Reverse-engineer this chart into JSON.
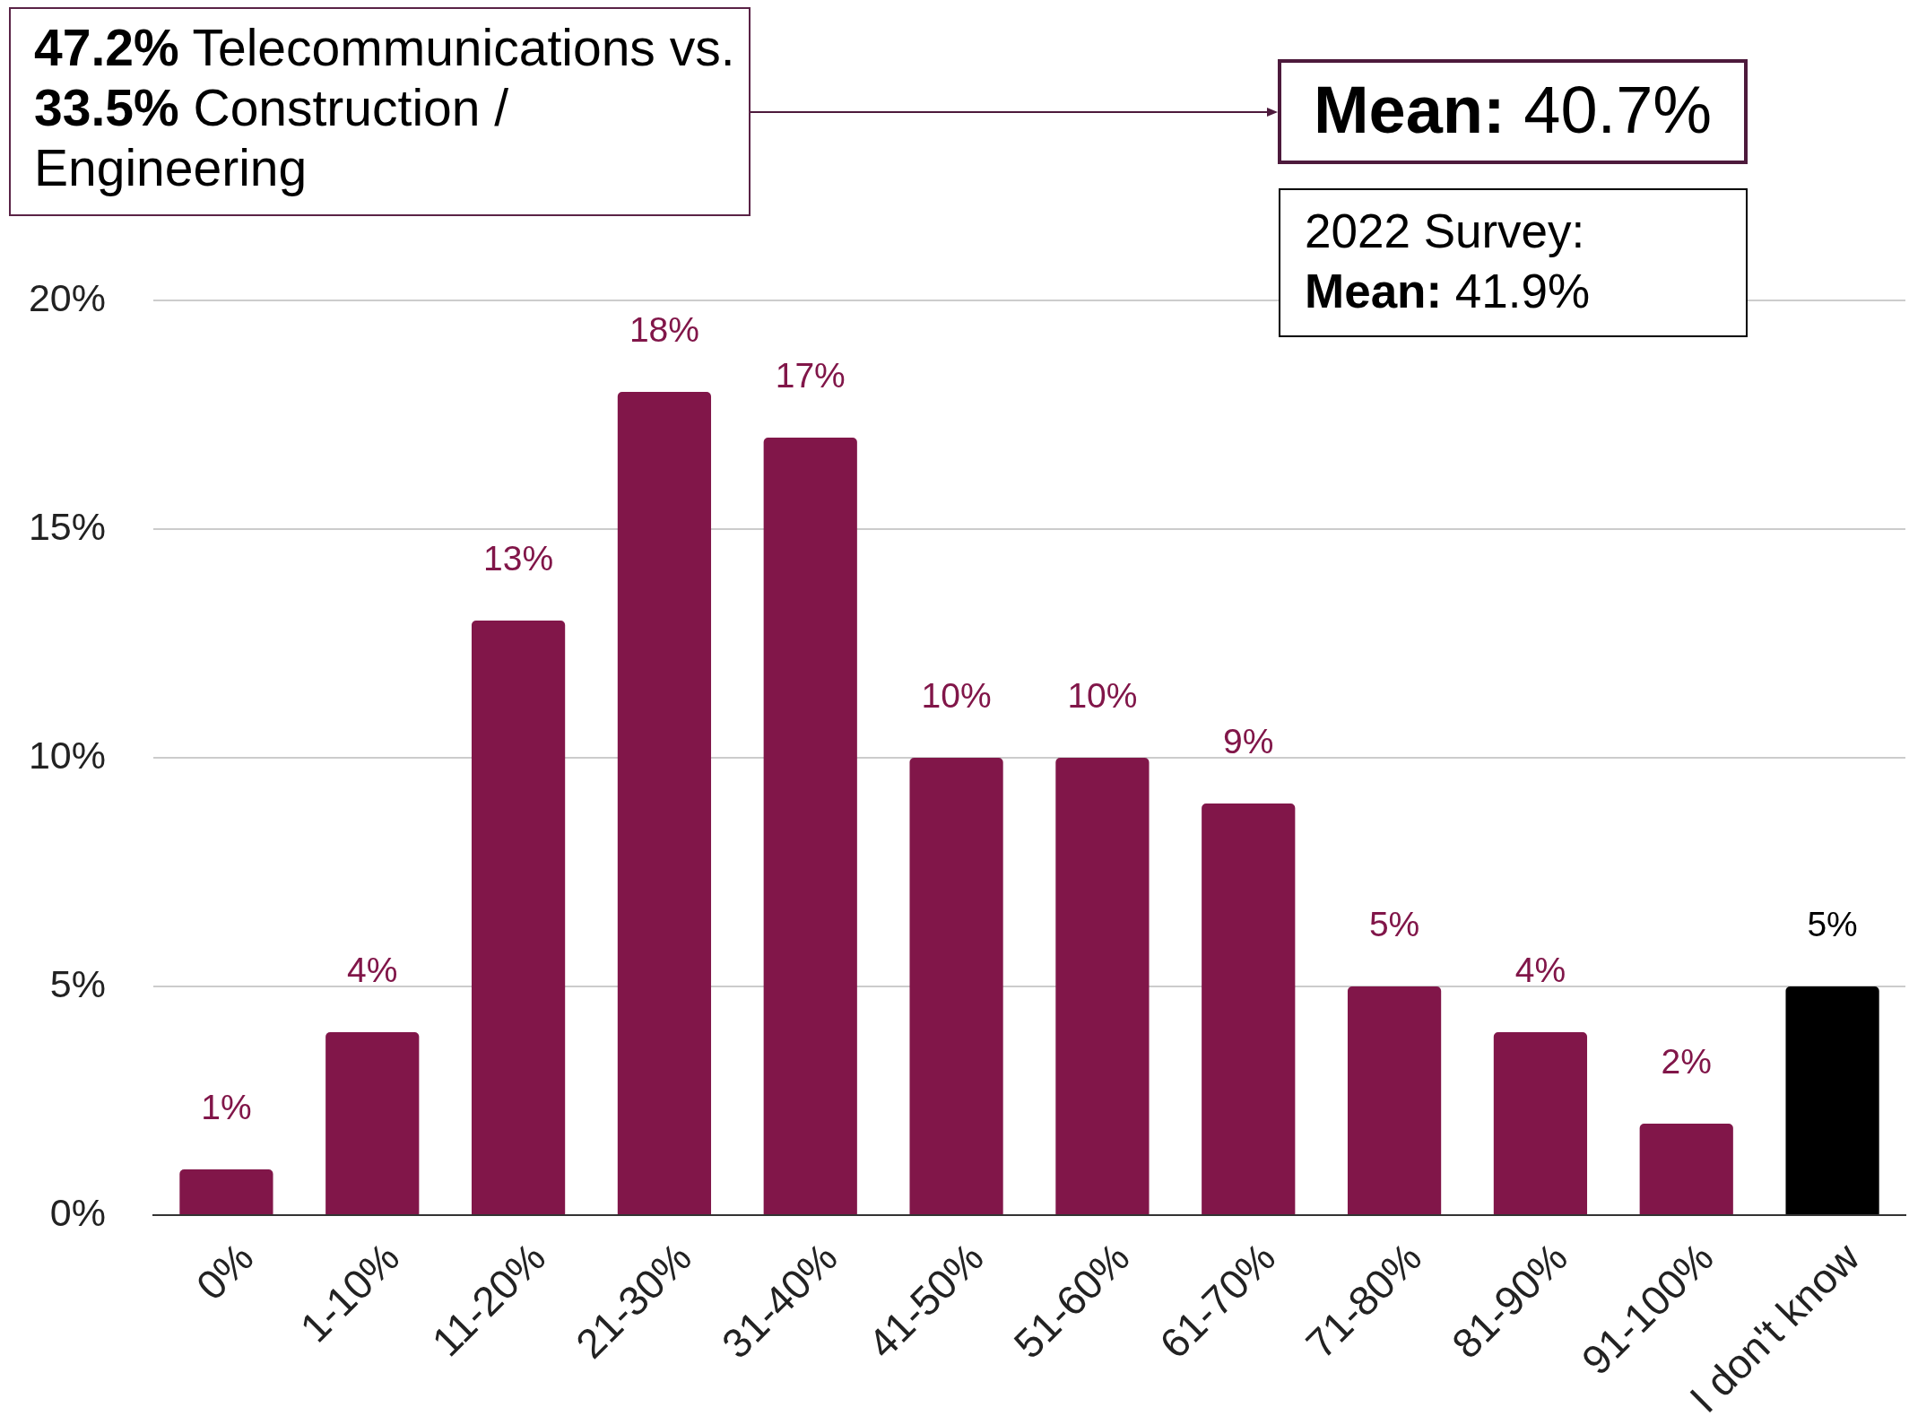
{
  "chart_data": {
    "type": "bar",
    "categories": [
      "0%",
      "1-10%",
      "11-20%",
      "21-30%",
      "31-40%",
      "41-50%",
      "51-60%",
      "61-70%",
      "71-80%",
      "81-90%",
      "91-100%",
      "I don't know"
    ],
    "values": [
      1,
      4,
      13,
      18,
      17,
      10,
      10,
      9,
      5,
      4,
      2,
      5
    ],
    "colors": [
      "#811649",
      "#811649",
      "#811649",
      "#811649",
      "#811649",
      "#811649",
      "#811649",
      "#811649",
      "#811649",
      "#811649",
      "#811649",
      "#000000"
    ],
    "value_labels": [
      "1%",
      "4%",
      "13%",
      "18%",
      "17%",
      "10%",
      "10%",
      "9%",
      "5%",
      "4%",
      "2%",
      "5%"
    ],
    "ylim": [
      0,
      20
    ],
    "yticks": [
      {
        "value": 0,
        "label": "0%"
      },
      {
        "value": 5,
        "label": "5%"
      },
      {
        "value": 10,
        "label": "10%"
      },
      {
        "value": 15,
        "label": "15%"
      },
      {
        "value": 20,
        "label": "20%"
      }
    ],
    "grid": "y",
    "annotations": [
      "47.2% Telecommunications vs. 33.5% Construction / Engineering",
      "Mean: 40.7%",
      "2022 Survey:\nMean: 41.9%"
    ]
  }
}
